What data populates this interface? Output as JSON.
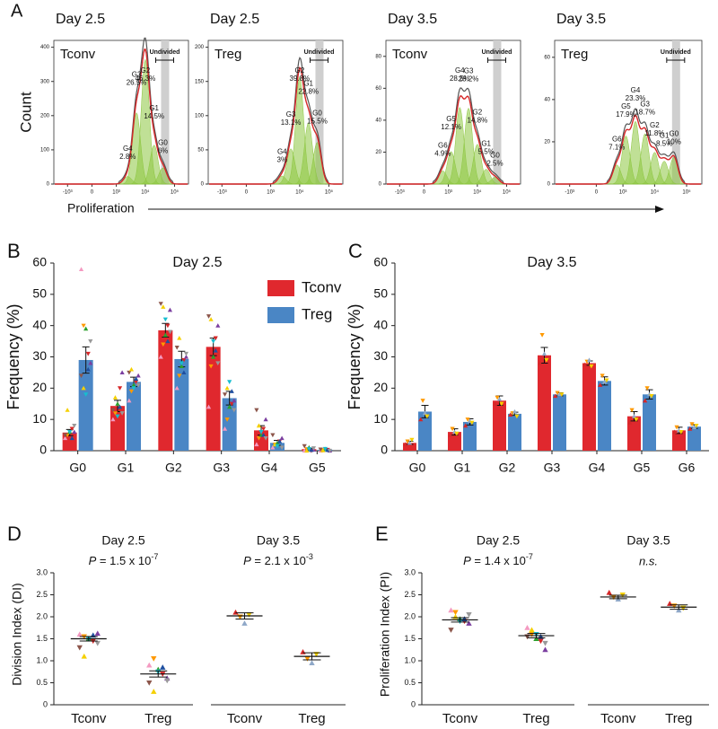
{
  "figure": {
    "x_label": "Proliferation",
    "y_label": "Count"
  },
  "chart_data": [
    {
      "type": "flow-histogram",
      "panel": "A",
      "title": "Day 2.5",
      "subtitle": "Tconv",
      "gate_label": "Undivided",
      "labels": [
        "G0",
        "G1",
        "G2",
        "G3",
        "G4"
      ],
      "values": [
        6,
        14.5,
        46.3,
        26.5,
        2.8
      ],
      "value_labels": [
        "6%",
        "14.5%",
        "46.3%",
        "26.5%",
        "2.8%"
      ],
      "ylim": [
        0,
        420
      ],
      "yticks": [
        0,
        100,
        200,
        300,
        400
      ],
      "xlim": [
        -3000,
        300000
      ],
      "xticks": [
        {
          "value": -1000,
          "label": "-10³"
        },
        0,
        {
          "value": 1000,
          "label": "10³"
        },
        {
          "value": 10000,
          "label": "10⁴"
        },
        {
          "value": 100000,
          "label": "10⁵"
        }
      ],
      "gate_color": "#8cc63f",
      "fit_color": "#d62728",
      "data_color": "#555555"
    },
    {
      "type": "flow-histogram",
      "title": "Day 2.5",
      "subtitle": "Treg",
      "gate_label": "Undivided",
      "labels": [
        "G0",
        "G1",
        "G2",
        "G3",
        "G4"
      ],
      "values": [
        15.5,
        22.8,
        39.8,
        13.1,
        3
      ],
      "value_labels": [
        "15.5%",
        "22.8%",
        "39.8%",
        "13.1%",
        "3%"
      ],
      "ylim": [
        0,
        210
      ],
      "yticks": [
        0,
        50,
        100,
        150,
        200
      ],
      "xlim": [
        -3000,
        300000
      ],
      "xticks": [
        {
          "value": -1000,
          "label": "-10³"
        },
        0,
        {
          "value": 1000,
          "label": "10³"
        },
        {
          "value": 10000,
          "label": "10⁴"
        },
        {
          "value": 100000,
          "label": "10⁵"
        }
      ],
      "gate_color": "#8cc63f",
      "fit_color": "#d62728",
      "data_color": "#555555"
    },
    {
      "type": "flow-histogram",
      "title": "Day 3.5",
      "subtitle": "Tconv",
      "gate_label": "Undivided",
      "labels": [
        "G0",
        "G1",
        "G2",
        "G3",
        "G4",
        "G5",
        "G6"
      ],
      "values": [
        2.5,
        5.5,
        14.8,
        28.2,
        28.5,
        12.1,
        4.9
      ],
      "value_labels": [
        "2.5%",
        "5.5%",
        "14.8%",
        "28.2%",
        "28.5%",
        "12.1%",
        "4.9%"
      ],
      "ylim": [
        0,
        90
      ],
      "yticks": [
        0,
        20,
        40,
        60,
        80
      ],
      "xlim": [
        -3000,
        300000
      ],
      "xticks": [
        {
          "value": -1000,
          "label": "-10³"
        },
        0,
        {
          "value": 1000,
          "label": "10³"
        },
        {
          "value": 10000,
          "label": "10⁴"
        },
        {
          "value": 100000,
          "label": "10⁵"
        }
      ],
      "gate_color": "#8cc63f",
      "fit_color": "#d62728",
      "data_color": "#555555"
    },
    {
      "type": "flow-histogram",
      "title": "Day 3.5",
      "subtitle": "Treg",
      "gate_label": "Undivided",
      "labels": [
        "G0",
        "G1",
        "G2",
        "G3",
        "G4",
        "G5",
        "G6"
      ],
      "values": [
        10,
        8.5,
        11.8,
        18.7,
        23.3,
        17.9,
        7.1
      ],
      "value_labels": [
        "10%",
        "8.5%",
        "11.8%",
        "18.7%",
        "23.3%",
        "17.9%",
        "7.1%"
      ],
      "ylim": [
        0,
        68
      ],
      "yticks": [
        0,
        20,
        40,
        60
      ],
      "xlim": [
        -3000,
        300000
      ],
      "xticks": [
        {
          "value": -1000,
          "label": "-10³"
        },
        0,
        {
          "value": 1000,
          "label": "10³"
        },
        {
          "value": 10000,
          "label": "10⁴"
        },
        {
          "value": 100000,
          "label": "10⁵"
        }
      ],
      "gate_color": "#8cc63f",
      "fit_color": "#d62728",
      "data_color": "#555555"
    },
    {
      "type": "bar",
      "panel": "B",
      "title": "Day 2.5",
      "y_label": "Frequency (%)",
      "legend": "top-right",
      "categories": [
        "G0",
        "G1",
        "G2",
        "G3",
        "G4",
        "G5"
      ],
      "series": [
        {
          "name": "Tconv",
          "color": "#e0282e",
          "values": [
            5.8,
            14.3,
            38.5,
            33.2,
            6.5,
            0.5
          ],
          "errors": [
            1,
            1.8,
            2.2,
            2.8,
            1.5,
            0.3
          ],
          "points": [
            [
              4,
              5,
              6,
              7,
              6,
              5,
              13,
              6,
              4,
              8
            ],
            [
              10,
              12,
              15,
              20,
              25,
              13,
              17,
              11,
              14,
              12
            ],
            [
              30,
              34,
              37,
              40,
              45,
              47,
              46,
              42,
              35,
              38
            ],
            [
              14,
              27,
              30,
              36,
              40,
              43,
              42,
              35,
              32,
              28
            ],
            [
              2,
              4,
              5,
              7,
              10,
              13,
              8,
              6,
              5,
              4
            ],
            [
              0,
              0.5,
              1,
              0,
              0.3,
              1.5,
              0,
              0.5,
              0.2,
              0.8
            ]
          ]
        },
        {
          "name": "Treg",
          "color": "#4a86c5",
          "values": [
            29,
            22,
            29.3,
            16.8,
            2.5,
            0.3
          ],
          "errors": [
            4.2,
            1.5,
            2.5,
            2.2,
            0.8,
            0.2
          ],
          "points": [
            [
              58,
              40,
              39,
              31,
              28,
              24,
              20,
              18,
              26,
              35
            ],
            [
              16,
              19,
              21,
              22,
              24,
              25,
              26,
              20,
              23,
              21
            ],
            [
              20,
              24,
              27,
              29,
              30,
              33,
              36,
              28,
              25,
              31
            ],
            [
              7,
              10,
              14,
              15,
              16,
              18,
              20,
              22,
              19,
              13
            ],
            [
              1,
              2,
              2.5,
              3,
              4,
              5,
              2,
              1.5,
              3,
              1
            ],
            [
              0,
              0.2,
              0.5,
              0.3,
              0,
              0.4,
              0.1,
              0.6,
              0.2,
              0
            ]
          ]
        }
      ],
      "point_colors": [
        "#f49ac1",
        "#ff9900",
        "#2ca02c",
        "#d62728",
        "#7b3fa0",
        "#8c564b",
        "#f5d000",
        "#17becf",
        "#1f4fa0",
        "#999999"
      ],
      "ylim": [
        0,
        60
      ],
      "yticks": [
        0,
        10,
        20,
        30,
        40,
        50,
        60
      ]
    },
    {
      "type": "bar",
      "panel": "C",
      "title": "Day 3.5",
      "y_label": "Frequency (%)",
      "categories": [
        "G0",
        "G1",
        "G2",
        "G3",
        "G4",
        "G5",
        "G6"
      ],
      "series": [
        {
          "name": "Tconv",
          "color": "#e0282e",
          "values": [
            2.5,
            6,
            16,
            30.5,
            28,
            11,
            6.5
          ],
          "errors": [
            0.5,
            1,
            1.5,
            2.5,
            0.7,
            1.5,
            1
          ],
          "points": [
            [
              2,
              3,
              2.5,
              3.5
            ],
            [
              5,
              7,
              6,
              5.5
            ],
            [
              15,
              17,
              16.5,
              15
            ],
            [
              28,
              37,
              31,
              29
            ],
            [
              27.5,
              28.5,
              29,
              27
            ],
            [
              9,
              13,
              11,
              10
            ],
            [
              6,
              7.5,
              6.5,
              6
            ]
          ]
        },
        {
          "name": "Treg",
          "color": "#4a86c5",
          "values": [
            12.5,
            9.2,
            11.8,
            18,
            22.3,
            18,
            7.7
          ],
          "errors": [
            2,
            1,
            0.5,
            0.5,
            1.3,
            1.5,
            0.6
          ],
          "points": [
            [
              10,
              16,
              12,
              11
            ],
            [
              8,
              10,
              9.5,
              9
            ],
            [
              11.5,
              12,
              12.5,
              11
            ],
            [
              17.5,
              18.5,
              18,
              18
            ],
            [
              21,
              24,
              22,
              22.5
            ],
            [
              16,
              20,
              18,
              17.5
            ],
            [
              7,
              8.5,
              7.5,
              8
            ]
          ]
        }
      ],
      "point_colors": [
        "#d62728",
        "#ff9900",
        "#8fa8c8",
        "#f5d000"
      ],
      "ylim": [
        0,
        60
      ],
      "yticks": [
        0,
        10,
        20,
        30,
        40,
        50,
        60
      ]
    },
    {
      "type": "dot",
      "panel": "D",
      "title": "Day 2.5",
      "y_label": "Division Index (DI)",
      "p_symbol": "P",
      "p_text": " = 1.5 x 10",
      "p_exponent": "-7",
      "categories": [
        "Tconv",
        "Treg"
      ],
      "means": [
        1.5,
        0.7
      ],
      "errors": [
        0.05,
        0.07
      ],
      "points": [
        [
          1.6,
          1.55,
          1.5,
          1.45,
          1.62,
          1.3,
          1.1,
          1.5,
          1.58,
          1.4
        ],
        [
          0.9,
          1.05,
          0.8,
          0.7,
          0.6,
          0.5,
          0.3,
          0.75,
          0.85,
          0.55
        ]
      ],
      "point_colors": [
        "#f49ac1",
        "#ff9900",
        "#2ca02c",
        "#d62728",
        "#7b3fa0",
        "#8c564b",
        "#f5d000",
        "#17becf",
        "#1f4fa0",
        "#999999"
      ],
      "ylim": [
        0,
        3.0
      ],
      "yticks": [
        0,
        0.5,
        {
          "value": 1,
          "label": "1.0"
        },
        1.5,
        {
          "value": 2,
          "label": "2.0"
        },
        2.5,
        {
          "value": 3,
          "label": "3.0"
        }
      ]
    },
    {
      "type": "dot",
      "title": "Day 3.5",
      "p_symbol": "P",
      "p_text": " = 2.1 x 10",
      "p_exponent": "-3",
      "categories": [
        "Tconv",
        "Treg"
      ],
      "means": [
        2.02,
        1.1
      ],
      "errors": [
        0.07,
        0.08
      ],
      "points": [
        [
          2.1,
          2.0,
          1.85,
          2.05
        ],
        [
          1.2,
          1.05,
          0.95,
          1.15
        ]
      ],
      "point_colors": [
        "#d62728",
        "#ff9900",
        "#8fa8c8",
        "#f5d000"
      ],
      "ylim": [
        0,
        3.0
      ]
    },
    {
      "type": "dot",
      "panel": "E",
      "title": "Day 2.5",
      "y_label": "Proliferation Index (PI)",
      "p_symbol": "P",
      "p_text": " = 1.4 x 10",
      "p_exponent": "-7",
      "categories": [
        "Tconv",
        "Treg"
      ],
      "means": [
        1.93,
        1.57
      ],
      "errors": [
        0.05,
        0.05
      ],
      "points": [
        [
          2.15,
          2.1,
          1.95,
          1.9,
          1.85,
          1.7,
          2.0,
          1.9,
          1.95,
          2.05
        ],
        [
          1.75,
          1.6,
          1.5,
          1.45,
          1.25,
          1.55,
          1.7,
          1.6,
          1.55,
          1.4
        ]
      ],
      "point_colors": [
        "#f49ac1",
        "#ff9900",
        "#2ca02c",
        "#d62728",
        "#7b3fa0",
        "#8c564b",
        "#f5d000",
        "#17becf",
        "#1f4fa0",
        "#999999"
      ],
      "ylim": [
        0,
        3.0
      ],
      "yticks": [
        0,
        0.5,
        {
          "value": 1,
          "label": "1.0"
        },
        1.5,
        {
          "value": 2,
          "label": "2.0"
        },
        2.5,
        {
          "value": 3,
          "label": "3.0"
        }
      ]
    },
    {
      "type": "dot",
      "title": "Day 3.5",
      "annotation": "n.s.",
      "categories": [
        "Tconv",
        "Treg"
      ],
      "means": [
        2.45,
        2.22
      ],
      "errors": [
        0.04,
        0.05
      ],
      "points": [
        [
          2.55,
          2.45,
          2.4,
          2.5
        ],
        [
          2.3,
          2.25,
          2.15,
          2.2
        ]
      ],
      "point_colors": [
        "#d62728",
        "#ff9900",
        "#8fa8c8",
        "#f5d000"
      ],
      "ylim": [
        0,
        3.0
      ]
    }
  ]
}
